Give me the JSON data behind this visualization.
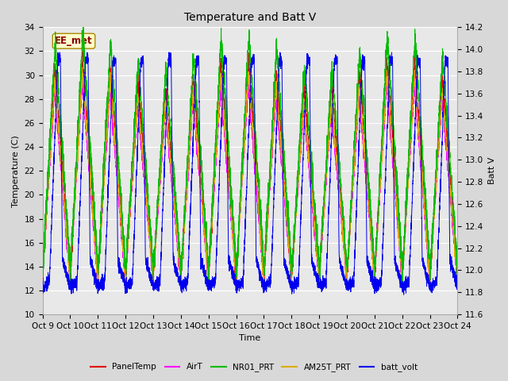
{
  "title": "Temperature and Batt V",
  "xlabel": "Time",
  "ylabel_left": "Temperature (C)",
  "ylabel_right": "Batt V",
  "annotation_text": "EE_met",
  "ylim_left": [
    10,
    34
  ],
  "ylim_right": [
    11.6,
    14.2
  ],
  "xtick_labels": [
    "Oct 9",
    "Oct 10",
    "Oct 11",
    "Oct 12",
    "Oct 13",
    "Oct 14",
    "Oct 15",
    "Oct 16",
    "Oct 17",
    "Oct 18",
    "Oct 19",
    "Oct 20",
    "Oct 21",
    "Oct 22",
    "Oct 23",
    "Oct 24"
  ],
  "yticks_left": [
    10,
    12,
    14,
    16,
    18,
    20,
    22,
    24,
    26,
    28,
    30,
    32,
    34
  ],
  "yticks_right": [
    11.6,
    11.8,
    12.0,
    12.2,
    12.4,
    12.6,
    12.8,
    13.0,
    13.2,
    13.4,
    13.6,
    13.8,
    14.0,
    14.2
  ],
  "legend_entries": [
    "PanelTemp",
    "AirT",
    "NR01_PRT",
    "AM25T_PRT",
    "batt_volt"
  ],
  "legend_colors": [
    "#dd0000",
    "#ff00ff",
    "#00bb00",
    "#ddaa00",
    "#0000ee"
  ],
  "line_colors": {
    "PanelTemp": "#dd0000",
    "AirT": "#ff00ff",
    "NR01_PRT": "#00bb00",
    "AM25T_PRT": "#ddaa00",
    "batt_volt": "#0000ee"
  },
  "fig_facecolor": "#d8d8d8",
  "axes_facecolor": "#e8e8e8",
  "grid_color": "#ffffff",
  "title_fontsize": 10,
  "label_fontsize": 8,
  "tick_fontsize": 7.5,
  "n_points": 5000,
  "days": 15,
  "annotation_color": "#880000",
  "annotation_bg": "#ffffcc",
  "annotation_edge": "#aa8800"
}
